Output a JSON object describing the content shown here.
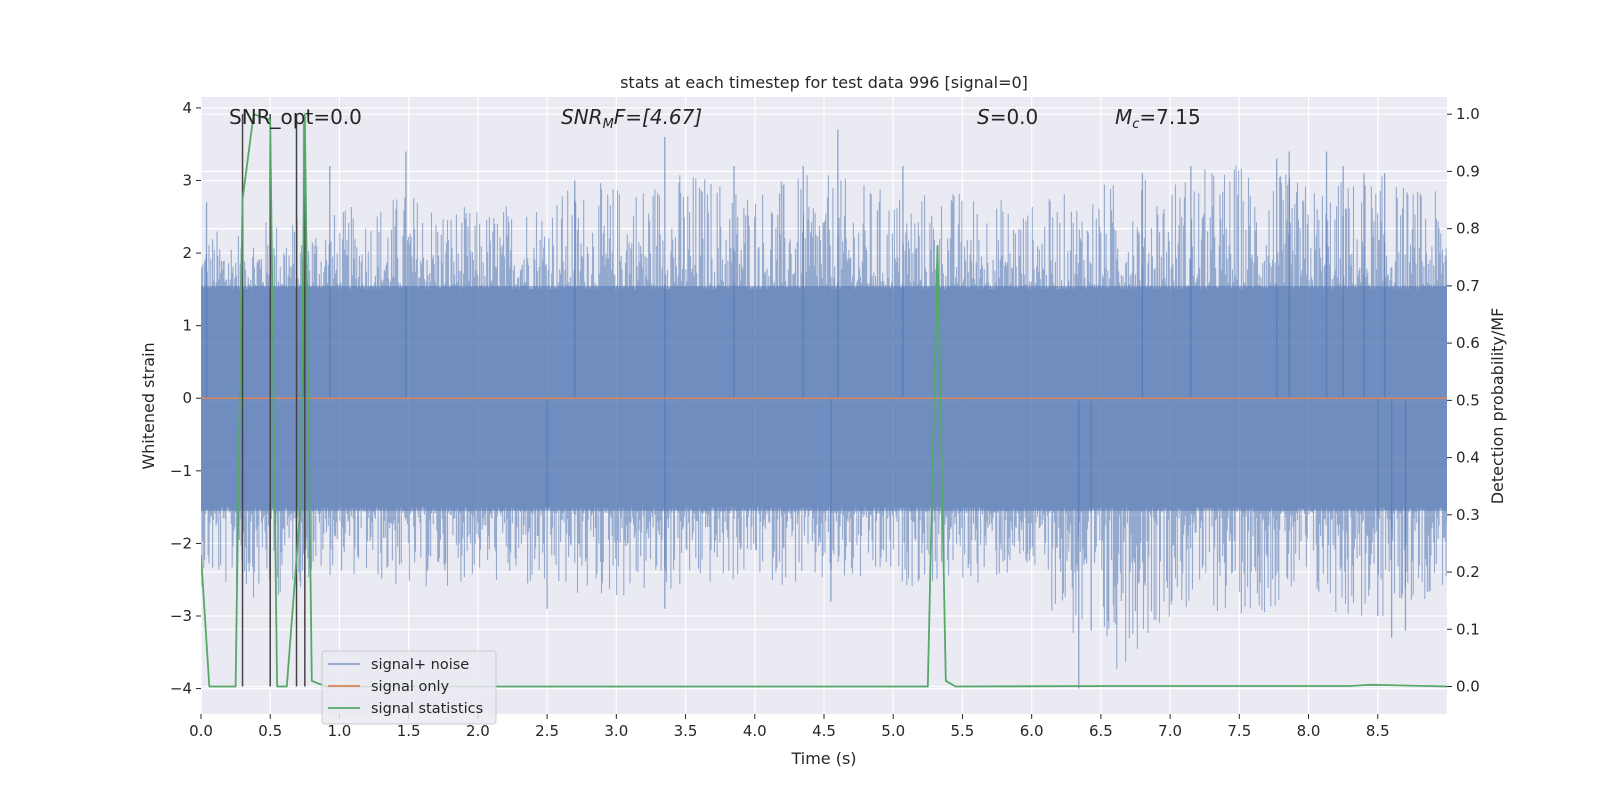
{
  "chart_data": {
    "type": "line",
    "title": "stats at each timestep for test data 996 [signal=0]",
    "xlabel": "Time (s)",
    "ylabel_left": "Whitened strain",
    "ylabel_right": "Detection probability/MF",
    "xlim": [
      0,
      9.0
    ],
    "ylim_left": [
      -4.35,
      4.15
    ],
    "ylim_right": [
      -0.048,
      1.03
    ],
    "x_ticks": [
      0.0,
      0.5,
      1.0,
      1.5,
      2.0,
      2.5,
      3.0,
      3.5,
      4.0,
      4.5,
      5.0,
      5.5,
      6.0,
      6.5,
      7.0,
      7.5,
      8.0,
      8.5
    ],
    "x_tick_labels": [
      "0.0",
      "0.5",
      "1.0",
      "1.5",
      "2.0",
      "2.5",
      "3.0",
      "3.5",
      "4.0",
      "4.5",
      "5.0",
      "5.5",
      "6.0",
      "6.5",
      "7.0",
      "7.5",
      "8.0",
      "8.5"
    ],
    "y_left_ticks": [
      4,
      3,
      2,
      1,
      0,
      -1,
      -2,
      -3,
      -4
    ],
    "y_left_tick_labels": [
      "4",
      "3",
      "2",
      "1",
      "0",
      "−1",
      "−2",
      "−3",
      "−4"
    ],
    "y_right_ticks": [
      1.0,
      0.9,
      0.8,
      0.7,
      0.6,
      0.5,
      0.4,
      0.3,
      0.2,
      0.1,
      0.0
    ],
    "y_right_tick_labels": [
      "1.0",
      "0.9",
      "0.8",
      "0.7",
      "0.6",
      "0.5",
      "0.4",
      "0.3",
      "0.2",
      "0.1",
      "0.0"
    ],
    "grid": true,
    "legend_position": "lower-left",
    "annotations": {
      "snr_opt": "SNR_opt=0.0",
      "snr_mf_sym": "SNR",
      "snr_mf_sub": "M",
      "snr_mf_rest": "F=[4.67]",
      "s_sym": "S",
      "s_rest": "=0.0",
      "mc_sym": "M",
      "mc_sub": "c",
      "mc_rest": "=7.15"
    },
    "noise_envelope": {
      "x": [
        0.0,
        0.5,
        1.0,
        1.5,
        2.0,
        2.5,
        3.0,
        3.5,
        4.0,
        4.5,
        5.0,
        5.5,
        6.0,
        6.5,
        7.0,
        7.5,
        8.0,
        8.5,
        9.0
      ],
      "upper": [
        2.3,
        2.5,
        2.6,
        2.9,
        2.6,
        2.9,
        3.0,
        3.2,
        3.0,
        3.1,
        2.9,
        2.9,
        2.7,
        3.0,
        3.1,
        3.3,
        3.0,
        3.1,
        2.8
      ],
      "lower": [
        -2.6,
        -2.8,
        -2.4,
        -2.7,
        -2.5,
        -2.8,
        -2.8,
        -2.7,
        -2.5,
        -2.7,
        -2.6,
        -2.6,
        -2.5,
        -4.0,
        -3.0,
        -3.0,
        -2.9,
        -3.2,
        -2.6
      ]
    },
    "peak_spikes": [
      {
        "x": 0.04,
        "y": 2.7
      },
      {
        "x": 0.3,
        "y": 2.9
      },
      {
        "x": 0.5,
        "y": 2.9
      },
      {
        "x": 0.74,
        "y": 3.8
      },
      {
        "x": 0.93,
        "y": 3.2
      },
      {
        "x": 1.48,
        "y": 3.4
      },
      {
        "x": 2.7,
        "y": 3.0
      },
      {
        "x": 3.35,
        "y": 3.6
      },
      {
        "x": 3.85,
        "y": 3.2
      },
      {
        "x": 4.35,
        "y": 3.2
      },
      {
        "x": 4.6,
        "y": 3.7
      },
      {
        "x": 5.07,
        "y": 3.2
      },
      {
        "x": 6.8,
        "y": 3.1
      },
      {
        "x": 7.15,
        "y": 3.2
      },
      {
        "x": 7.77,
        "y": 3.3
      },
      {
        "x": 7.86,
        "y": 3.4
      },
      {
        "x": 8.13,
        "y": 3.4
      },
      {
        "x": 8.25,
        "y": 3.2
      },
      {
        "x": 8.4,
        "y": 3.1
      },
      {
        "x": 8.55,
        "y": 3.1
      },
      {
        "x": 6.34,
        "y": -4.0
      },
      {
        "x": 6.43,
        "y": -3.2
      },
      {
        "x": 8.6,
        "y": -3.3
      },
      {
        "x": 8.7,
        "y": -3.2
      },
      {
        "x": 8.5,
        "y": -3.0
      },
      {
        "x": 2.5,
        "y": -2.9
      },
      {
        "x": 3.35,
        "y": -2.9
      },
      {
        "x": 4.55,
        "y": -2.8
      }
    ],
    "signal_statistics": {
      "x": [
        0.0,
        0.06,
        0.25,
        0.3,
        0.38,
        0.5,
        0.55,
        0.62,
        0.72,
        0.75,
        0.8,
        0.9,
        5.25,
        5.32,
        5.38,
        5.45,
        6.7,
        8.3,
        8.45,
        9.0
      ],
      "y": [
        0.23,
        0.0,
        0.0,
        0.85,
        1.0,
        0.99,
        0.0,
        0.0,
        0.32,
        1.0,
        0.01,
        0.0,
        0.0,
        0.77,
        0.01,
        0.0,
        0.001,
        0.001,
        0.003,
        0.0
      ]
    },
    "vertical_markers_x": [
      0.3,
      0.5,
      0.69,
      0.75
    ],
    "series": [
      {
        "name": "signal+ noise",
        "color": "#4c72b0"
      },
      {
        "name": "signal only",
        "color": "#dd8452"
      },
      {
        "name": "signal statistics",
        "color": "#55a868"
      }
    ],
    "colors": {
      "axes_bg": "#eaeaf2",
      "grid": "#ffffff",
      "noise": "#4c72b0",
      "signal_only": "#dd8452",
      "statistics": "#55a868",
      "markers": "#444444"
    }
  }
}
